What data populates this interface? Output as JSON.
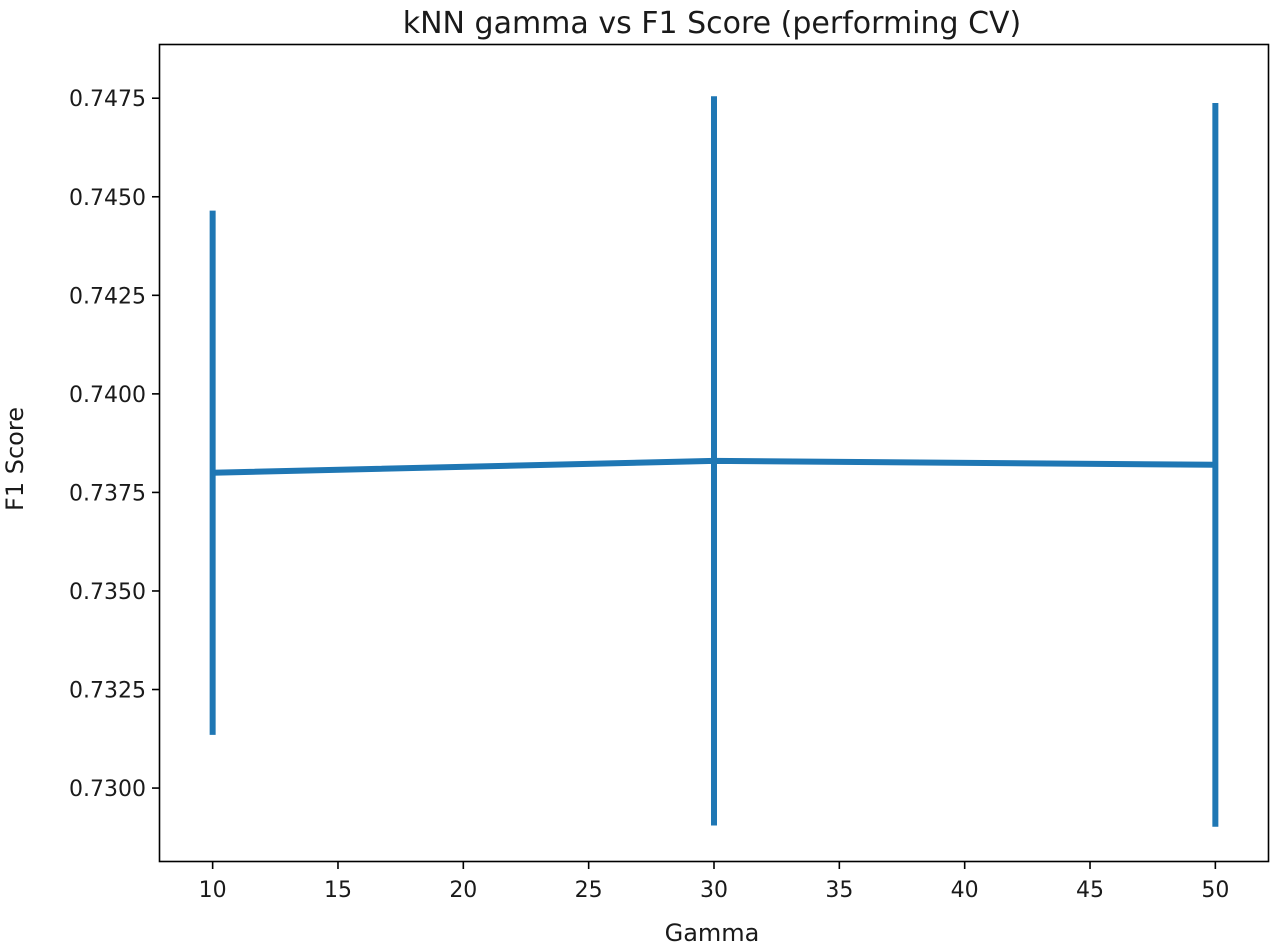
{
  "chart_data": {
    "type": "line",
    "title": "kNN gamma vs F1 Score (performing CV)",
    "xlabel": "Gamma",
    "ylabel": "F1 Score",
    "x": [
      10,
      30,
      50
    ],
    "series": [
      {
        "values": [
          0.738,
          0.7383,
          0.7382
        ],
        "error": [
          0.00665,
          0.00925,
          0.00918
        ],
        "color": "#1f77b4"
      }
    ],
    "xlim": [
      7.9,
      52.1
    ],
    "ylim": [
      0.72815,
      0.74885
    ],
    "xticks": [
      10,
      15,
      20,
      25,
      30,
      35,
      40,
      45,
      50
    ],
    "xtick_labels": [
      "10",
      "15",
      "20",
      "25",
      "30",
      "35",
      "40",
      "45",
      "50"
    ],
    "yticks": [
      0.73,
      0.7325,
      0.735,
      0.7375,
      0.74,
      0.7425,
      0.745,
      0.7475
    ],
    "ytick_labels": [
      "0.7300",
      "0.7325",
      "0.7350",
      "0.7375",
      "0.7400",
      "0.7425",
      "0.7450",
      "0.7475"
    ],
    "grid": false,
    "legend": false
  }
}
